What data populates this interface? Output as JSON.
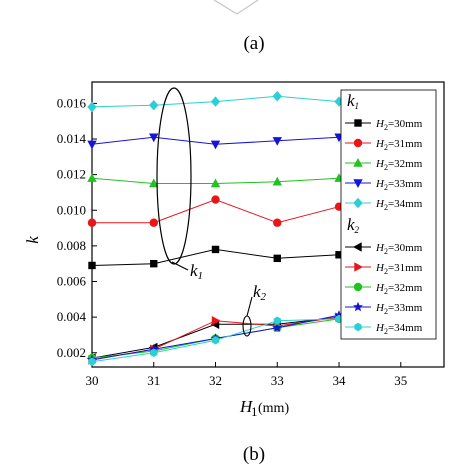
{
  "captions": {
    "top": "(a)",
    "bottom": "(b)"
  },
  "colors": {
    "30": "#000000",
    "31": "#e8151b",
    "32": "#21c221",
    "33": "#1614d6",
    "34": "#2cd0d4"
  },
  "chart_data": {
    "type": "line",
    "title": "",
    "xlabel": "H1 (mm)",
    "ylabel": "k",
    "xlim": [
      30,
      35.7
    ],
    "ylim": [
      0.0012,
      0.0172
    ],
    "x_ticks": [
      "30",
      "31",
      "32",
      "33",
      "34",
      "35"
    ],
    "y_ticks": [
      "0.002",
      "0.004",
      "0.006",
      "0.008",
      "0.010",
      "0.012",
      "0.014",
      "0.016"
    ],
    "x": [
      30,
      31,
      32,
      33,
      34
    ],
    "groups": [
      {
        "name": "k1",
        "series": [
          {
            "name": "H2=30mm",
            "key": "30",
            "marker": "square",
            "values": [
              0.0069,
              0.007,
              0.0078,
              0.0073,
              0.0075
            ]
          },
          {
            "name": "H2=31mm",
            "key": "31",
            "marker": "circle",
            "values": [
              0.0093,
              0.0093,
              0.0106,
              0.0093,
              0.0102
            ]
          },
          {
            "name": "H2=32mm",
            "key": "32",
            "marker": "triangle-up",
            "values": [
              0.0118,
              0.0115,
              0.0115,
              0.0116,
              0.0118
            ]
          },
          {
            "name": "H2=33mm",
            "key": "33",
            "marker": "triangle-down",
            "values": [
              0.0137,
              0.0141,
              0.0137,
              0.0139,
              0.0141
            ]
          },
          {
            "name": "H2=34mm",
            "key": "34",
            "marker": "diamond",
            "values": [
              0.0158,
              0.0159,
              0.0161,
              0.0164,
              0.0161
            ]
          }
        ]
      },
      {
        "name": "k2",
        "series": [
          {
            "name": "H2=30mm",
            "key": "30",
            "marker": "triangle-left",
            "values": [
              0.0017,
              0.0023,
              0.0036,
              0.0036,
              0.004
            ]
          },
          {
            "name": "H2=31mm",
            "key": "31",
            "marker": "triangle-right",
            "values": [
              0.0016,
              0.0022,
              0.0038,
              0.0035,
              0.004
            ]
          },
          {
            "name": "H2=32mm",
            "key": "32",
            "marker": "circle",
            "values": [
              0.0017,
              0.0021,
              0.0028,
              0.0034,
              0.0039
            ]
          },
          {
            "name": "H2=33mm",
            "key": "33",
            "marker": "star",
            "values": [
              0.0016,
              0.0022,
              0.0028,
              0.0034,
              0.0041
            ]
          },
          {
            "name": "H2=34mm",
            "key": "34",
            "marker": "hexagon",
            "values": [
              0.0015,
              0.002,
              0.0027,
              0.0038,
              0.0039
            ]
          }
        ]
      }
    ],
    "annotations": [
      "k1",
      "k2"
    ],
    "legend": "right"
  }
}
